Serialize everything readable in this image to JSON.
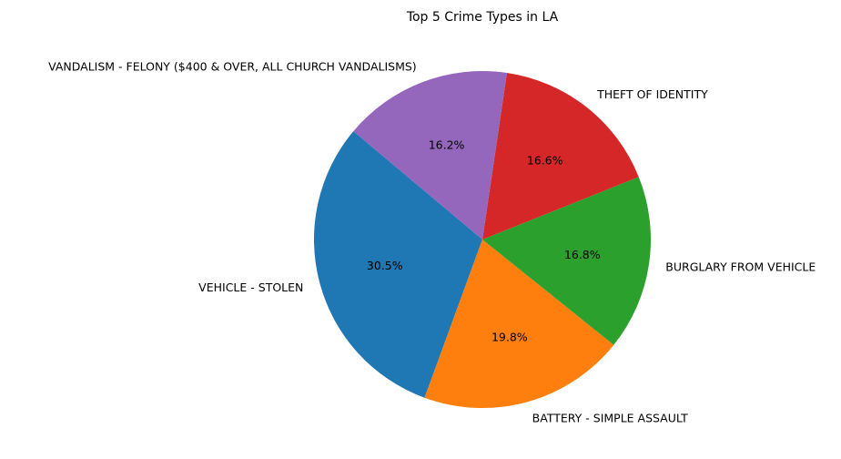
{
  "chart_data": {
    "type": "pie",
    "title": "Top 5 Crime Types in LA",
    "start_angle_deg": 140,
    "direction": "counterclockwise",
    "slices": [
      {
        "label": "VEHICLE - STOLEN",
        "value": 30.5,
        "pct_label": "30.5%",
        "color": "#1f77b4"
      },
      {
        "label": "BATTERY - SIMPLE ASSAULT",
        "value": 19.8,
        "pct_label": "19.8%",
        "color": "#ff7f0e"
      },
      {
        "label": "BURGLARY FROM VEHICLE",
        "value": 16.8,
        "pct_label": "16.8%",
        "color": "#2ca02c"
      },
      {
        "label": "THEFT OF IDENTITY",
        "value": 16.6,
        "pct_label": "16.6%",
        "color": "#d62728"
      },
      {
        "label": "VANDALISM - FELONY ($400 & OVER, ALL CHURCH VANDALISMS)",
        "value": 16.2,
        "pct_label": "16.2%",
        "color": "#9467bd"
      }
    ]
  }
}
